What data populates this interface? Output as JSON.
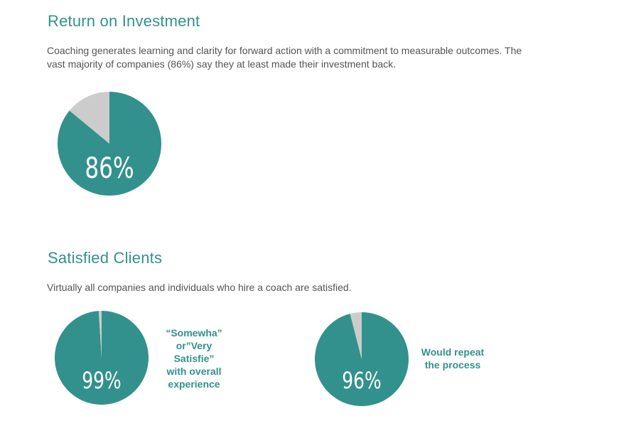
{
  "colors": {
    "accent": "#32918c",
    "rest": "#cccccc",
    "heading": "#32918c",
    "text": "#545454"
  },
  "roi": {
    "title": "Return on Investment",
    "description_lines": [
      "Coaching generates learning and clarity for forward action with a commitment to measurable outcomes. The",
      "vast majority of companies (86%) say they at least made their investment back."
    ]
  },
  "satisfied": {
    "title": "Satisfied Clients",
    "description": "Virtually all companies and individuals who hire a coach are satisfied."
  },
  "chart_data": [
    {
      "type": "pie",
      "label": "86%",
      "values": [
        86,
        14
      ],
      "caption_lines": []
    },
    {
      "type": "pie",
      "label": "99%",
      "values": [
        99,
        1
      ],
      "caption_lines": [
        "“Somewha”",
        "or”Very",
        "Satisfie”",
        "with overall",
        "experience"
      ]
    },
    {
      "type": "pie",
      "label": "96%",
      "values": [
        96,
        4
      ],
      "caption_lines": [
        "Would repeat",
        "the process"
      ]
    }
  ]
}
